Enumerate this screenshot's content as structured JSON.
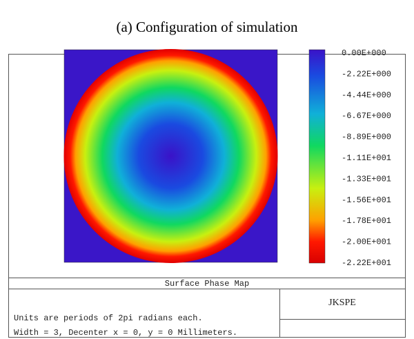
{
  "title": "(a) Configuration of simulation",
  "colorbar": {
    "labels": [
      "0.00E+000",
      "-2.22E+000",
      "-4.44E+000",
      "-6.67E+000",
      "-8.89E+000",
      "-1.11E+001",
      "-1.33E+001",
      "-1.56E+001",
      "-1.78E+001",
      "-2.00E+001",
      "-2.22E+001"
    ]
  },
  "footer": {
    "plot_name": "Surface Phase Map",
    "units": "Units are periods of 2pi radians each.",
    "details": "Width = 3, Decenter x = 0, y = 0 Millimeters.",
    "label": "JKSPE"
  }
}
